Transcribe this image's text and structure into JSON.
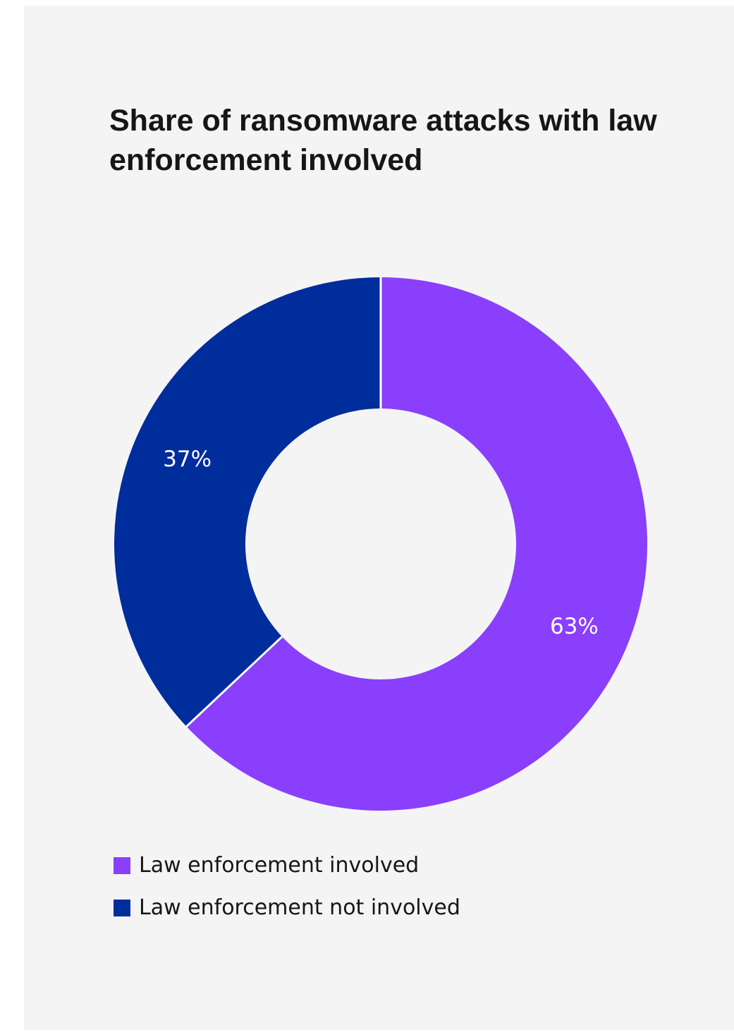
{
  "title": "Share of ransomware attacks with law enforcement involved",
  "colors": {
    "involved": "#8a3ffc",
    "not_involved": "#002d9c",
    "background": "#f4f4f4",
    "divider": "#ffffff",
    "label": "#ffffff"
  },
  "legend": [
    {
      "label": "Law enforcement involved",
      "color": "#8a3ffc"
    },
    {
      "label": "Law enforcement not involved",
      "color": "#002d9c"
    }
  ],
  "chart_data": {
    "type": "pie",
    "title": "Share of ransomware attacks with law enforcement involved",
    "donut": true,
    "categories": [
      "Law enforcement involved",
      "Law enforcement not involved"
    ],
    "values": [
      63,
      37
    ],
    "data_labels": [
      "63%",
      "37%"
    ],
    "colors": [
      "#8a3ffc",
      "#002d9c"
    ],
    "legend_position": "bottom-left"
  }
}
